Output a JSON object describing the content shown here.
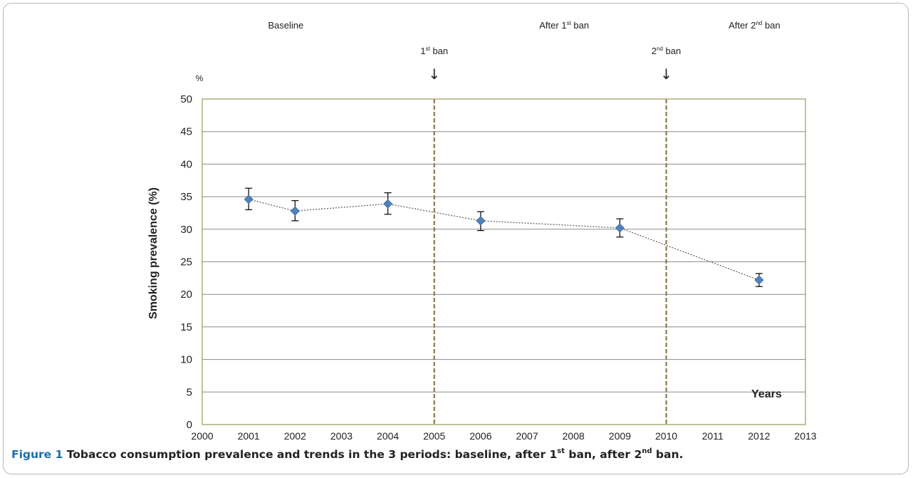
{
  "chart_data": {
    "type": "line",
    "x": [
      2001,
      2002,
      2004,
      2006,
      2009,
      2012
    ],
    "y": [
      34.6,
      32.8,
      33.9,
      31.3,
      30.2,
      22.2
    ],
    "error_low": [
      33.0,
      31.3,
      32.3,
      29.8,
      28.8,
      21.2
    ],
    "error_high": [
      36.3,
      34.4,
      35.6,
      32.7,
      31.6,
      23.2
    ],
    "xlim": [
      2000,
      2013
    ],
    "ylim": [
      0,
      50
    ],
    "x_ticks": [
      2000,
      2001,
      2002,
      2003,
      2004,
      2005,
      2006,
      2007,
      2008,
      2009,
      2010,
      2011,
      2012,
      2013
    ],
    "y_ticks": [
      0,
      5,
      10,
      15,
      20,
      25,
      30,
      35,
      40,
      45,
      50
    ],
    "ylabel": "Smoking   prevalence (%)",
    "y_unit": "%",
    "xlabel": "Years",
    "grid": "horizontal",
    "marker_color": "#4f81bd",
    "line_color": "#6e6e6e",
    "gridline_color": "#8c8c8c",
    "plot_border_color": "#9a9a5a",
    "vline_color": "#8b7a4a",
    "periods": [
      {
        "label_base": "Baseline",
        "label_sup": "",
        "label_tail": "",
        "x_center": 2001.8
      },
      {
        "label_base": "After 1",
        "label_sup": "st",
        "label_tail": " ban",
        "x_center": 2007.8
      },
      {
        "label_base": "After 2",
        "label_sup": "nd",
        "label_tail": " ban",
        "x_center": 2011.9
      }
    ],
    "bans": [
      {
        "x": 2005,
        "label_base": "1",
        "label_sup": "st",
        "label_tail": " ban",
        "arrow": "↓"
      },
      {
        "x": 2010,
        "label_base": "2",
        "label_sup": "nd",
        "label_tail": " ban",
        "arrow": "↓"
      }
    ]
  },
  "caption": {
    "label": "Figure 1",
    "text_1": " Tobacco consumption prevalence and trends in the 3 periods: baseline, after 1",
    "sup_1": "st",
    "text_2": " ban, after 2",
    "sup_2": "nd",
    "text_3": " ban."
  }
}
